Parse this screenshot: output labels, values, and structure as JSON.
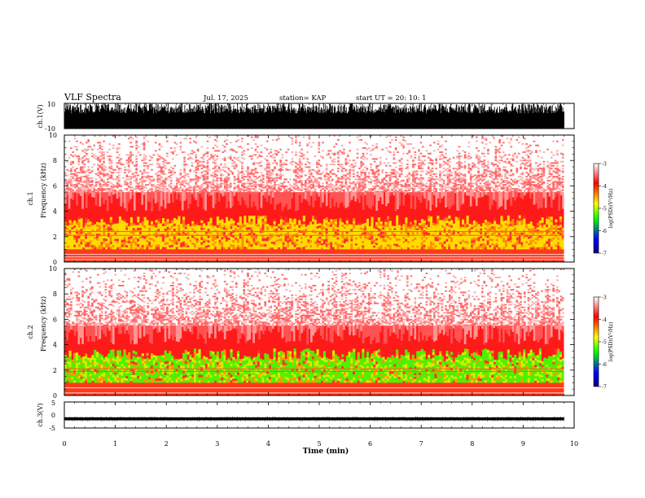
{
  "header": {
    "title": "VLF Spectra",
    "date": "Jul. 17, 2025",
    "station": "station= KAP",
    "start": "start UT =  20: 10: 1"
  },
  "colorbar": {
    "label": "log(PSD)(V²/Hz)",
    "ticks": [
      "-3",
      "-4",
      "-5",
      "-6",
      "-7"
    ],
    "stops": [
      "#ffffff",
      "#ff0000",
      "#ffff00",
      "#00ff00",
      "#0000ff",
      "#000080"
    ]
  },
  "colors": {
    "ink": "#000000",
    "background": "#ffffff"
  },
  "chart_data": [
    {
      "type": "line",
      "name": "ch1-waveform",
      "ylabel": "ch.1(V)",
      "ylim": [
        -10,
        10
      ],
      "y_tick_labels": [
        "10",
        "-10"
      ],
      "xlim": [
        0,
        10
      ],
      "description_values": "dense waveform clipping between about -10 and +8 V over 0-9.8 min"
    },
    {
      "type": "heatmap",
      "name": "ch1-spectrogram",
      "ylabel_top": "ch.1",
      "ylabel": "Frequency (kHz)",
      "ylim": [
        0,
        10
      ],
      "y_tick_labels": [
        "0",
        "2",
        "4",
        "6",
        "8",
        "10"
      ],
      "xlim": [
        0,
        10
      ],
      "data_end_min": 9.8,
      "bands": [
        {
          "f_low": 0.0,
          "f_high": 1.0,
          "level": "-4.2"
        },
        {
          "f_low": 1.0,
          "f_high": 3.5,
          "level": "-4.6"
        },
        {
          "f_low": 3.5,
          "f_high": 5.5,
          "level": "-3.8"
        },
        {
          "f_low": 5.5,
          "f_high": 10.0,
          "level": "-3.2"
        }
      ],
      "lines_khz": [
        0.2,
        0.4,
        0.6,
        2.1,
        2.4
      ]
    },
    {
      "type": "heatmap",
      "name": "ch2-spectrogram",
      "ylabel_top": "ch.2",
      "ylabel": "Frequency (kHz)",
      "ylim": [
        0,
        10
      ],
      "y_tick_labels": [
        "0",
        "2",
        "4",
        "6",
        "8",
        "10"
      ],
      "xlim": [
        0,
        10
      ],
      "data_end_min": 9.8,
      "bands": [
        {
          "f_low": 0.0,
          "f_high": 1.0,
          "level": "-4.2"
        },
        {
          "f_low": 1.0,
          "f_high": 3.5,
          "level": "-5.1"
        },
        {
          "f_low": 3.5,
          "f_high": 5.5,
          "level": "-3.8"
        },
        {
          "f_low": 5.5,
          "f_high": 10.0,
          "level": "-3.2"
        }
      ],
      "lines_khz": [
        0.2,
        0.6,
        1.9,
        2.1
      ]
    },
    {
      "type": "line",
      "name": "ch3-waveform",
      "ylabel": "ch.3(V)",
      "ylim": [
        -5,
        5
      ],
      "y_tick_labels": [
        "5",
        "0",
        "-5"
      ],
      "xlim": [
        0,
        10
      ],
      "description_values": "flat band around -1.5 V with small amplitude over 0-9.8 min"
    }
  ],
  "xaxis": {
    "label": "Time (min)",
    "tick_labels": [
      "0",
      "1",
      "2",
      "3",
      "4",
      "5",
      "6",
      "7",
      "8",
      "9",
      "10"
    ],
    "xlim": [
      0,
      10
    ]
  }
}
